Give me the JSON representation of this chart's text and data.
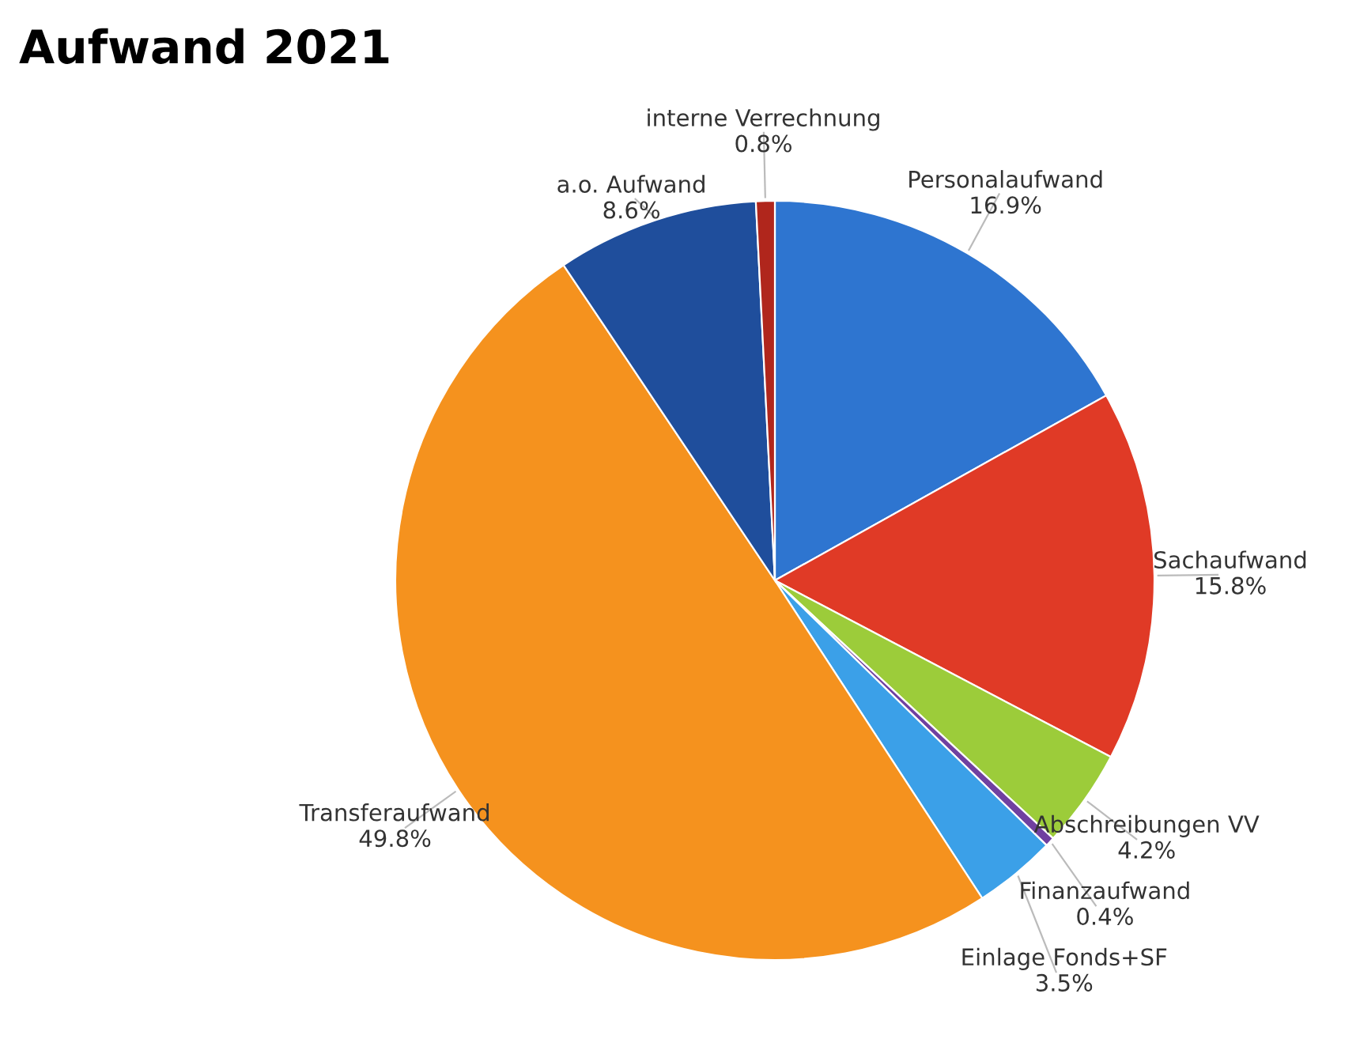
{
  "chart_data": {
    "type": "pie",
    "title": "Aufwand 2021",
    "categories": [
      "Personalaufwand",
      "Sachaufwand",
      "Abschreibungen VV",
      "Finanzaufwand",
      "Einlage Fonds+SF",
      "Transferaufwand",
      "a.o. Aufwand",
      "interne Verrechnung"
    ],
    "values": [
      16.9,
      15.8,
      4.2,
      0.4,
      3.5,
      49.8,
      8.6,
      0.8
    ],
    "value_labels": [
      "16.9%",
      "15.8%",
      "4.2%",
      "0.4%",
      "3.5%",
      "49.8%",
      "8.6%",
      "0.8%"
    ],
    "colors": [
      "#2e75d0",
      "#e03a26",
      "#9ccc3a",
      "#7040a0",
      "#3ba0e8",
      "#f5921e",
      "#1f4e9c",
      "#b0261c"
    ],
    "legend": false
  }
}
